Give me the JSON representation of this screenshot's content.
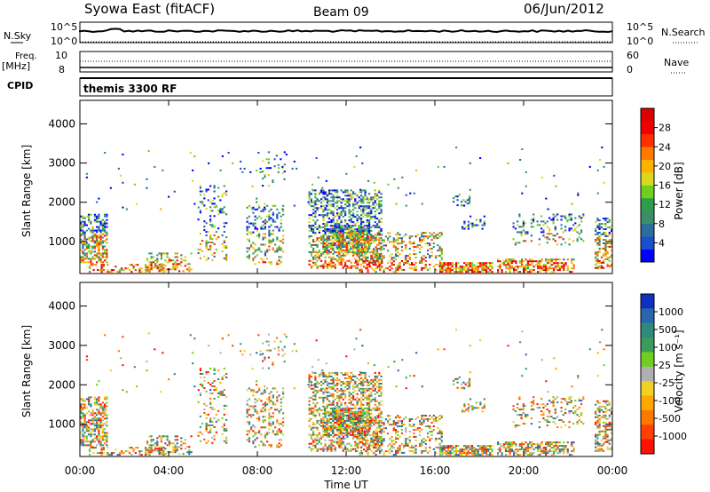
{
  "header": {
    "station": "Syowa East (fitACF)",
    "beam": "Beam 09",
    "date": "06/Jun/2012"
  },
  "top_panels": {
    "nsky": {
      "label": "N.Sky",
      "ticks": [
        "10^5",
        "10^0"
      ]
    },
    "nsearch": {
      "label": "N.Search",
      "ticks": [
        "10^5",
        "10^0"
      ]
    },
    "freq": {
      "label": "Freq.",
      "unit": "[MHz]",
      "ticks": [
        "10",
        "8"
      ]
    },
    "nave": {
      "label": "Nave",
      "ticks": [
        "60",
        "0"
      ]
    },
    "cpid": {
      "label": "CPID",
      "program": "themis 3300 RF"
    }
  },
  "chart_data": [
    {
      "type": "heatmap",
      "name": "power",
      "ylabel": "Slant Range [km]",
      "xlabel": "",
      "x_ticks": [
        "00:00",
        "04:00",
        "08:00",
        "12:00",
        "16:00",
        "20:00",
        "00:00"
      ],
      "x_hours": [
        0,
        4,
        8,
        12,
        16,
        20,
        24
      ],
      "y_ticks": [
        1000,
        2000,
        3000,
        4000
      ],
      "ylim": [
        180,
        4600
      ],
      "colorbar": {
        "label": "Power [dB]",
        "ticks": [
          "4",
          "8",
          "12",
          "16",
          "20",
          "24",
          "28"
        ],
        "colors": [
          "#0000ff",
          "#1a4fcf",
          "#2b6e9a",
          "#3a8f6a",
          "#2f9e4a",
          "#6fcf1f",
          "#d8d820",
          "#ffb000",
          "#ff7a00",
          "#ff3000",
          "#ee0000",
          "#dd0000"
        ]
      }
    },
    {
      "type": "heatmap",
      "name": "velocity",
      "ylabel": "Slant Range [km]",
      "xlabel": "Time UT",
      "x_ticks": [
        "00:00",
        "04:00",
        "08:00",
        "12:00",
        "16:00",
        "20:00",
        "00:00"
      ],
      "x_hours": [
        0,
        4,
        8,
        12,
        16,
        20,
        24
      ],
      "y_ticks": [
        1000,
        2000,
        3000,
        4000
      ],
      "ylim": [
        180,
        4600
      ],
      "colorbar": {
        "label": "Velocity [m s⁻¹]",
        "ticks": [
          "1000",
          "500",
          "100",
          "25",
          "-25",
          "-100",
          "-500",
          "-1000"
        ],
        "colors": [
          "#1030c0",
          "#2866b0",
          "#2f8a7a",
          "#3c9a5a",
          "#6fcf20",
          "#b0b0b0",
          "#f0d020",
          "#ffa800",
          "#ff7800",
          "#ff4000",
          "#ff1000"
        ]
      }
    }
  ]
}
